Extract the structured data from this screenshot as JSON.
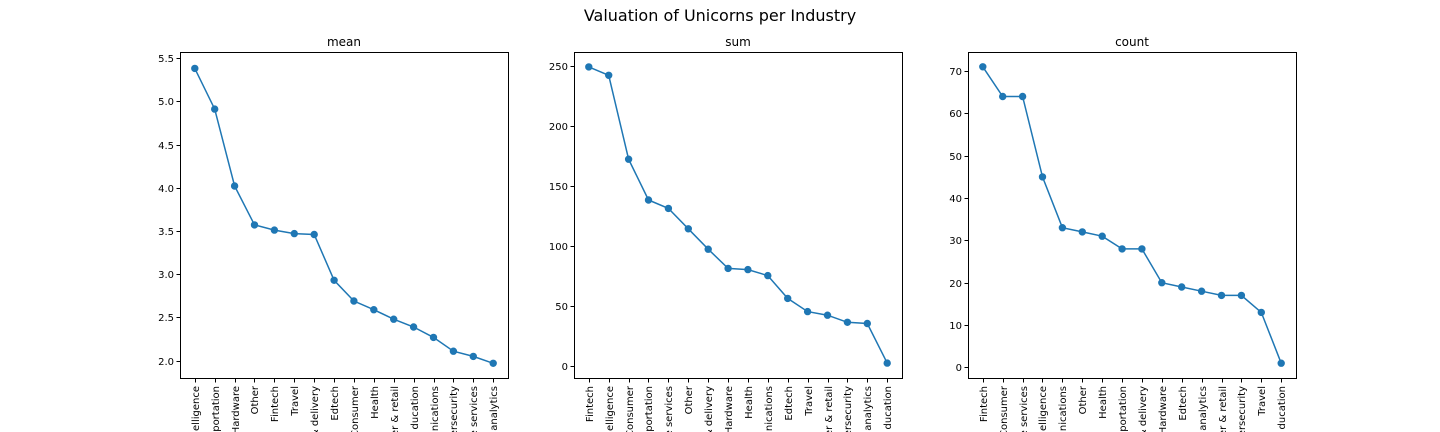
{
  "suptitle": "Valuation of Unicorns per Industry",
  "chart_data": [
    {
      "type": "line",
      "title": "mean",
      "categories": [
        "elligence",
        "portation",
        "Hardware",
        "Other",
        "Fintech",
        "Travel",
        "& delivery",
        "Edtech",
        "Consumer",
        "Health",
        "er & retail",
        "ducation",
        "nications",
        "ersecurity",
        "e services",
        "analytics"
      ],
      "values": [
        5.38,
        4.91,
        4.02,
        3.57,
        3.51,
        3.47,
        3.46,
        2.93,
        2.69,
        2.59,
        2.48,
        2.39,
        2.27,
        2.11,
        2.05,
        1.97
      ],
      "ylim": [
        1.8,
        5.57
      ],
      "yticks": [
        2.0,
        2.5,
        3.0,
        3.5,
        4.0,
        4.5,
        5.0,
        5.5
      ],
      "ytick_labels": [
        "2.0",
        "2.5",
        "3.0",
        "3.5",
        "4.0",
        "4.5",
        "5.0",
        "5.5"
      ],
      "grid": false
    },
    {
      "type": "line",
      "title": "sum",
      "categories": [
        "Fintech",
        "elligence",
        "Consumer",
        "portation",
        "e services",
        "Other",
        "& delivery",
        "Hardware",
        "Health",
        "nications",
        "Edtech",
        "Travel",
        "er & retail",
        "ersecurity",
        "analytics",
        "ducation"
      ],
      "values": [
        249,
        242,
        172,
        138,
        131,
        114,
        97,
        81,
        80,
        75,
        56,
        45,
        42,
        36,
        35,
        2
      ],
      "ylim": [
        -10.4,
        261.4
      ],
      "yticks": [
        0,
        50,
        100,
        150,
        200,
        250
      ],
      "ytick_labels": [
        "0",
        "50",
        "100",
        "150",
        "200",
        "250"
      ],
      "grid": false
    },
    {
      "type": "line",
      "title": "count",
      "categories": [
        "Fintech",
        "Consumer",
        "e services",
        "elligence",
        "nications",
        "Other",
        "Health",
        "portation",
        "& delivery",
        "Hardware",
        "Edtech",
        "analytics",
        "er & retail",
        "ersecurity",
        "Travel",
        "ducation"
      ],
      "values": [
        71,
        64,
        64,
        45,
        33,
        32,
        31,
        28,
        28,
        20,
        19,
        18,
        17,
        17,
        13,
        1
      ],
      "ylim": [
        -2.5,
        74.5
      ],
      "yticks": [
        0,
        10,
        20,
        30,
        40,
        50,
        60,
        70
      ],
      "ytick_labels": [
        "0",
        "10",
        "20",
        "30",
        "40",
        "50",
        "60",
        "70"
      ],
      "grid": false
    }
  ],
  "colors": {
    "series": "#1f77b4",
    "axes": "#000000"
  }
}
